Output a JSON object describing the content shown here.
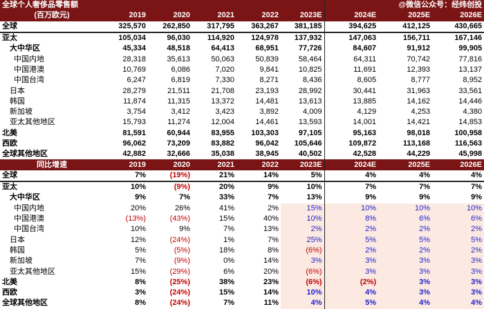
{
  "top": {
    "title": "全球个人奢侈品零售额",
    "unit": "(百万欧元)",
    "watermark": "@微信公众号：经纬创投",
    "years": [
      "2019",
      "2020",
      "2021",
      "2022",
      "2023E",
      "2024E",
      "2025E",
      "2026E"
    ],
    "rows": [
      {
        "label": "全球",
        "level": 0,
        "bold": true,
        "line": true,
        "values": [
          "325,570",
          "262,850",
          "317,795",
          "363,267",
          "381,185",
          "394,625",
          "412,125",
          "430,665"
        ]
      },
      {
        "label": "亚太",
        "level": 0,
        "bold": true,
        "values": [
          "105,034",
          "96,030",
          "114,920",
          "124,978",
          "137,932",
          "147,063",
          "156,711",
          "167,146"
        ]
      },
      {
        "label": "大中华区",
        "level": 1,
        "bold": true,
        "values": [
          "45,334",
          "48,518",
          "64,413",
          "68,951",
          "77,726",
          "84,607",
          "91,912",
          "99,905"
        ]
      },
      {
        "label": "中国内地",
        "level": 2,
        "values": [
          "28,318",
          "35,613",
          "50,063",
          "50,839",
          "58,464",
          "64,311",
          "70,742",
          "77,816"
        ]
      },
      {
        "label": "中国港澳",
        "level": 2,
        "values": [
          "10,769",
          "6,086",
          "7,020",
          "9,841",
          "10,825",
          "11,691",
          "12,393",
          "13,137"
        ]
      },
      {
        "label": "中国台湾",
        "level": 2,
        "values": [
          "6,247",
          "6,819",
          "7,330",
          "8,271",
          "8,436",
          "8,605",
          "8,777",
          "8,952"
        ]
      },
      {
        "label": "日本",
        "level": 1,
        "values": [
          "28,279",
          "21,511",
          "21,708",
          "23,193",
          "28,992",
          "30,441",
          "31,963",
          "33,561"
        ]
      },
      {
        "label": "韩国",
        "level": 1,
        "values": [
          "11,874",
          "11,315",
          "13,372",
          "14,481",
          "13,613",
          "13,885",
          "14,162",
          "14,446"
        ]
      },
      {
        "label": "新加坡",
        "level": 1,
        "values": [
          "3,754",
          "3,412",
          "3,423",
          "3,892",
          "4,009",
          "4,129",
          "4,253",
          "4,380"
        ]
      },
      {
        "label": "亚太其他地区",
        "level": 1,
        "values": [
          "15,793",
          "11,274",
          "12,004",
          "14,461",
          "13,593",
          "14,001",
          "14,421",
          "14,853"
        ]
      },
      {
        "label": "北美",
        "level": 0,
        "bold": true,
        "values": [
          "81,591",
          "60,944",
          "83,955",
          "103,303",
          "97,105",
          "95,163",
          "98,018",
          "100,958"
        ]
      },
      {
        "label": "西欧",
        "level": 0,
        "bold": true,
        "values": [
          "96,062",
          "73,209",
          "83,882",
          "96,042",
          "105,646",
          "109,872",
          "113,168",
          "116,563"
        ]
      },
      {
        "label": "全球其他地区",
        "level": 0,
        "bold": true,
        "values": [
          "42,882",
          "32,666",
          "35,038",
          "38,945",
          "40,502",
          "42,528",
          "44,229",
          "45,998"
        ]
      }
    ]
  },
  "growth": {
    "title": "同比增速",
    "years": [
      "2019",
      "2020",
      "2021",
      "2022",
      "2023E",
      "2024E",
      "2025E",
      "2026E"
    ],
    "rows": [
      {
        "label": "全球",
        "level": 0,
        "bold": true,
        "line": true,
        "values": [
          "7%",
          "(19%)",
          "21%",
          "14%",
          "5%",
          "4%",
          "4%",
          "4%"
        ]
      },
      {
        "label": "亚太",
        "level": 0,
        "bold": true,
        "values": [
          "10%",
          "(9%)",
          "20%",
          "9%",
          "10%",
          "7%",
          "7%",
          "7%"
        ]
      },
      {
        "label": "大中华区",
        "level": 1,
        "bold": true,
        "values": [
          "9%",
          "7%",
          "33%",
          "7%",
          "13%",
          "9%",
          "9%",
          "9%"
        ]
      },
      {
        "label": "中国内地",
        "level": 2,
        "hl": true,
        "values": [
          "20%",
          "26%",
          "41%",
          "2%",
          "15%",
          "10%",
          "10%",
          "10%"
        ]
      },
      {
        "label": "中国港澳",
        "level": 2,
        "hl": true,
        "values": [
          "(13%)",
          "(43%)",
          "15%",
          "40%",
          "10%",
          "8%",
          "6%",
          "6%"
        ]
      },
      {
        "label": "中国台湾",
        "level": 2,
        "hl": true,
        "values": [
          "10%",
          "9%",
          "7%",
          "13%",
          "2%",
          "2%",
          "2%",
          "2%"
        ]
      },
      {
        "label": "日本",
        "level": 1,
        "hl": true,
        "values": [
          "12%",
          "(24%)",
          "1%",
          "7%",
          "25%",
          "5%",
          "5%",
          "5%"
        ]
      },
      {
        "label": "韩国",
        "level": 1,
        "hl": true,
        "values": [
          "5%",
          "(5%)",
          "18%",
          "8%",
          "(6%)",
          "2%",
          "2%",
          "2%"
        ]
      },
      {
        "label": "新加坡",
        "level": 1,
        "hl": true,
        "values": [
          "7%",
          "(9%)",
          "0%",
          "14%",
          "3%",
          "3%",
          "3%",
          "3%"
        ]
      },
      {
        "label": "亚太其他地区",
        "level": 1,
        "hl": true,
        "values": [
          "15%",
          "(29%)",
          "6%",
          "20%",
          "(6%)",
          "3%",
          "3%",
          "3%"
        ]
      },
      {
        "label": "北美",
        "level": 0,
        "bold": true,
        "hl": true,
        "values": [
          "8%",
          "(25%)",
          "38%",
          "23%",
          "(6%)",
          "(2%)",
          "3%",
          "3%"
        ]
      },
      {
        "label": "西欧",
        "level": 0,
        "bold": true,
        "hl": true,
        "values": [
          "3%",
          "(24%)",
          "15%",
          "14%",
          "10%",
          "4%",
          "3%",
          "3%"
        ]
      },
      {
        "label": "全球其他地区",
        "level": 0,
        "bold": true,
        "hl": true,
        "values": [
          "8%",
          "(24%)",
          "7%",
          "11%",
          "4%",
          "5%",
          "4%",
          "4%"
        ]
      }
    ]
  }
}
